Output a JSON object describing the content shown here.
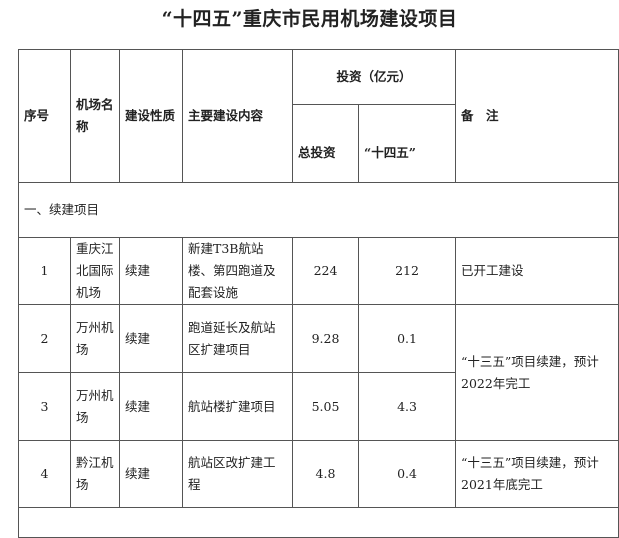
{
  "title": "“十四五”重庆市民用机场建设项目",
  "headers": {
    "index": "序号",
    "airport": "机场名称",
    "type": "建设性质",
    "content": "主要建设内容",
    "investment": "投资（亿元）",
    "total": "总投资",
    "plan": "“十四五”",
    "remark": "备　注"
  },
  "section": "一、续建项目",
  "rows": [
    {
      "index": "1",
      "airport": "重庆江北国际机场",
      "type": "续建",
      "content": "新建T3B航站楼、第四跑道及配套设施",
      "total": "224",
      "plan": "212",
      "remark": "已开工建设"
    },
    {
      "index": "2",
      "airport": "万州机场",
      "type": "续建",
      "content": "跑道延长及航站区扩建项目",
      "total": "9.28",
      "plan": "0.1",
      "remark": "“十三五”项目续建，预计2022年完工"
    },
    {
      "index": "3",
      "airport": "万州机场",
      "type": "续建",
      "content": "航站楼扩建项目",
      "total": "5.05",
      "plan": "4.3"
    },
    {
      "index": "4",
      "airport": "黔江机场",
      "type": "续建",
      "content": "航站区改扩建工程",
      "total": "4.8",
      "plan": "0.4",
      "remark": "“十三五”项目续建，预计2021年底完工"
    }
  ]
}
